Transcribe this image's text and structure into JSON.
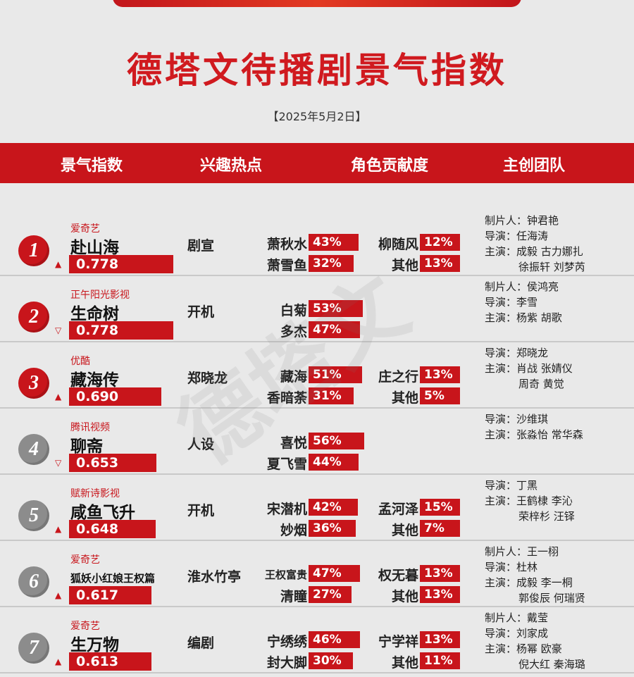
{
  "title": "德塔文待播剧景气指数",
  "date": "【2025年5月2日】",
  "headers": [
    "景气指数",
    "兴趣热点",
    "角色贡献度",
    "主创团队"
  ],
  "watermark": "德塔文",
  "rows": [
    {
      "rank": "1",
      "badge": "red",
      "trend": "▲",
      "platform": "爱奇艺",
      "title": "赴山海",
      "index": "0.778",
      "index_value": 0.778,
      "hotspot": "剧宣",
      "chars": [
        {
          "name": "萧秋水",
          "pct": "43%",
          "value": 43
        },
        {
          "name": "柳随风",
          "pct": "12%",
          "value": 12
        },
        {
          "name": "萧雪鱼",
          "pct": "32%",
          "value": 32
        },
        {
          "name": "其他",
          "pct": "13%",
          "value": 13
        }
      ],
      "team": [
        "制片人：钟君艳",
        "导演：任海涛",
        "主演：成毅  古力娜扎",
        "徐振轩  刘梦芮"
      ]
    },
    {
      "rank": "2",
      "badge": "red",
      "trend": "▽",
      "platform": "正午阳光影视",
      "title": "生命树",
      "index": "0.778",
      "index_value": 0.778,
      "hotspot": "开机",
      "chars": [
        {
          "name": "白菊",
          "pct": "53%",
          "value": 53
        },
        {
          "name": "多杰",
          "pct": "47%",
          "value": 47
        }
      ],
      "team": [
        "制片人：侯鸿亮",
        "导演：李雪",
        "主演：杨紫  胡歌"
      ]
    },
    {
      "rank": "3",
      "badge": "red",
      "trend": "▲",
      "platform": "优酷",
      "title": "藏海传",
      "index": "0.690",
      "index_value": 0.69,
      "hotspot": "郑晓龙",
      "chars": [
        {
          "name": "藏海",
          "pct": "51%",
          "value": 51
        },
        {
          "name": "庄之行",
          "pct": "13%",
          "value": 13
        },
        {
          "name": "香暗荼",
          "pct": "31%",
          "value": 31
        },
        {
          "name": "其他",
          "pct": "5%",
          "value": 5
        }
      ],
      "team": [
        "导演：郑晓龙",
        "主演：肖战  张婧仪",
        "周奇  黄觉"
      ]
    },
    {
      "rank": "4",
      "badge": "gray",
      "trend": "▽",
      "platform": "腾讯视频",
      "title": "聊斋",
      "index": "0.653",
      "index_value": 0.653,
      "hotspot": "人设",
      "chars": [
        {
          "name": "喜悦",
          "pct": "56%",
          "value": 56
        },
        {
          "name": "夏飞雪",
          "pct": "44%",
          "value": 44
        }
      ],
      "team": [
        "导演：沙维琪",
        "主演：张淼怡  常华森"
      ]
    },
    {
      "rank": "5",
      "badge": "gray",
      "trend": "▲",
      "platform": "赋新诗影视",
      "title": "咸鱼飞升",
      "index": "0.648",
      "index_value": 0.648,
      "hotspot": "开机",
      "chars": [
        {
          "name": "宋潜机",
          "pct": "42%",
          "value": 42
        },
        {
          "name": "孟河泽",
          "pct": "15%",
          "value": 15
        },
        {
          "name": "妙烟",
          "pct": "36%",
          "value": 36
        },
        {
          "name": "其他",
          "pct": "7%",
          "value": 7
        }
      ],
      "team": [
        "导演：丁黑",
        "主演：王鹤棣  李沁",
        "荣梓杉  汪铎"
      ]
    },
    {
      "rank": "6",
      "badge": "gray",
      "trend": "▲",
      "platform": "爱奇艺",
      "title": "狐妖小红娘王权篇",
      "index": "0.617",
      "index_value": 0.617,
      "hotspot": "淮水竹亭",
      "chars": [
        {
          "name": "王权富贵",
          "pct": "47%",
          "value": 47
        },
        {
          "name": "权无暮",
          "pct": "13%",
          "value": 13
        },
        {
          "name": "清瞳",
          "pct": "27%",
          "value": 27
        },
        {
          "name": "其他",
          "pct": "13%",
          "value": 13
        }
      ],
      "team": [
        "制片人：王一栩",
        "导演：杜林",
        "主演：成毅  李一桐",
        "郭俊辰  何瑞贤"
      ]
    },
    {
      "rank": "7",
      "badge": "gray",
      "trend": "▲",
      "platform": "爱奇艺",
      "title": "生万物",
      "index": "0.613",
      "index_value": 0.613,
      "hotspot": "编剧",
      "chars": [
        {
          "name": "宁绣绣",
          "pct": "46%",
          "value": 46
        },
        {
          "name": "宁学祥",
          "pct": "13%",
          "value": 13
        },
        {
          "name": "封大脚",
          "pct": "30%",
          "value": 30
        },
        {
          "name": "其他",
          "pct": "11%",
          "value": 11
        }
      ],
      "team": [
        "制片人：戴莹",
        "导演：刘家成",
        "主演：杨幂  欧豪",
        "倪大红  秦海璐"
      ]
    }
  ]
}
